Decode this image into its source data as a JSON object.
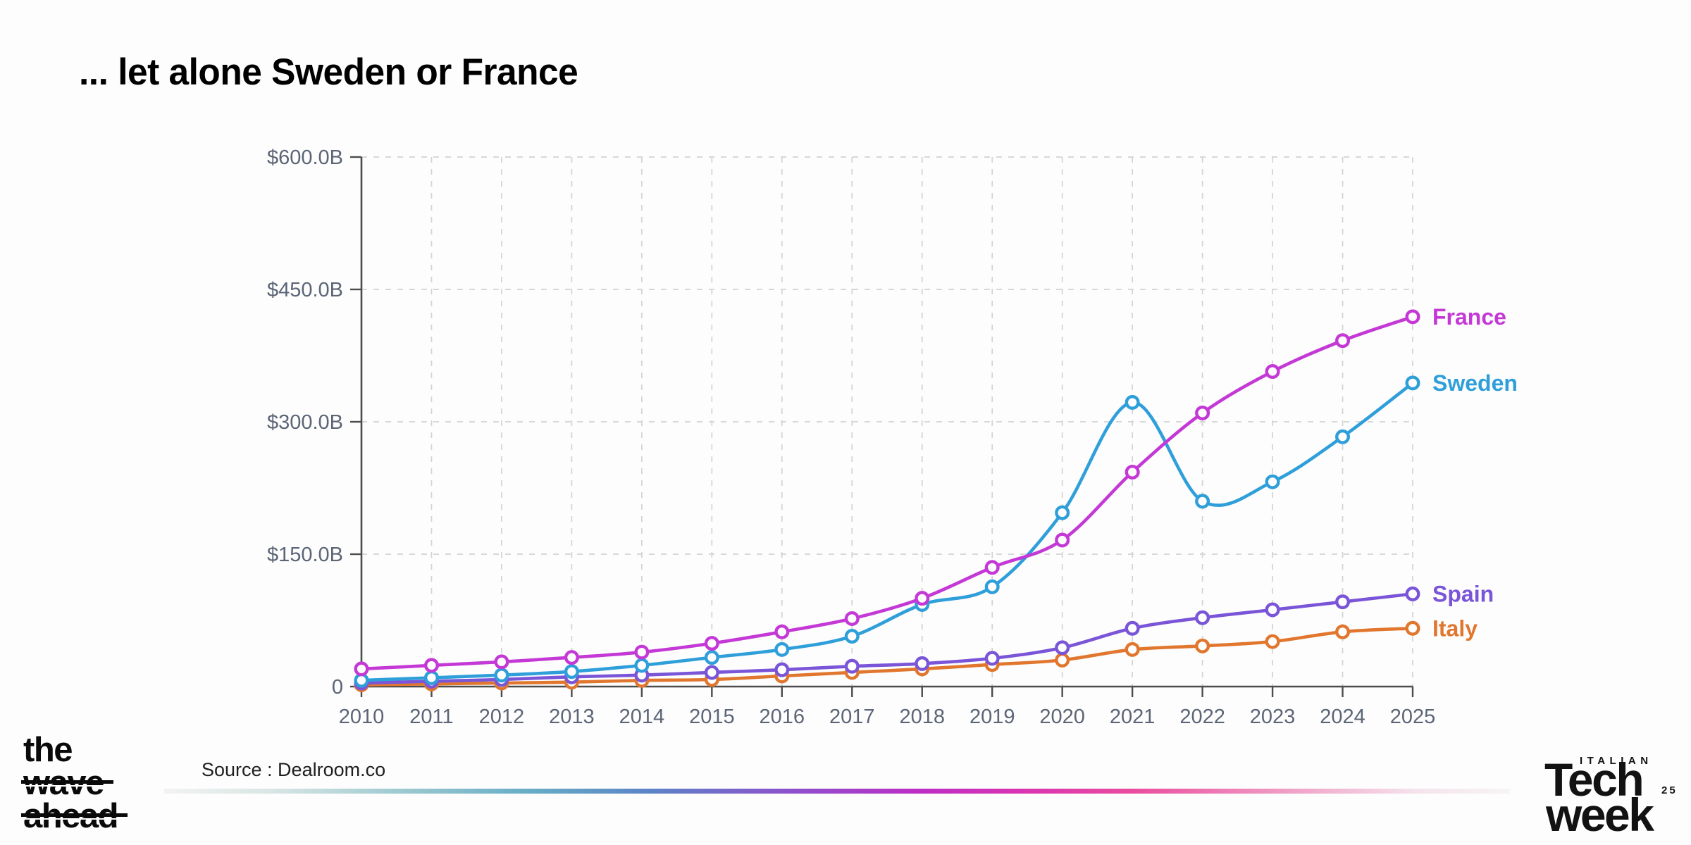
{
  "slide": {
    "title": "... let alone Sweden or France",
    "source": "Source : Dealroom.co"
  },
  "footer": {
    "left_logo": {
      "line1": "the",
      "line2": "wave",
      "line3": "ahead"
    },
    "right_logo": {
      "top": "ITALIAN",
      "line1": "Tech",
      "line2": "week",
      "year": "25"
    }
  },
  "chart_data": {
    "type": "line",
    "title": "... let alone Sweden or France",
    "xlabel": "",
    "ylabel": "",
    "ylim": [
      0,
      600
    ],
    "grid": "dashed",
    "legend_position": "right-of-line-end",
    "x": [
      2010,
      2011,
      2012,
      2013,
      2014,
      2015,
      2016,
      2017,
      2018,
      2019,
      2020,
      2021,
      2022,
      2023,
      2024,
      2025
    ],
    "y_ticks": [
      {
        "value": 0,
        "label": "0"
      },
      {
        "value": 150,
        "label": "$150.0B"
      },
      {
        "value": 300,
        "label": "$300.0B"
      },
      {
        "value": 450,
        "label": "$450.0B"
      },
      {
        "value": 600,
        "label": "$600.0B"
      }
    ],
    "series": [
      {
        "name": "Italy",
        "color": "#e1772e",
        "values": [
          2,
          3,
          4,
          5,
          7,
          8,
          12,
          16,
          20,
          25,
          30,
          42,
          46,
          51,
          62,
          66
        ]
      },
      {
        "name": "Spain",
        "color": "#7a55d8",
        "values": [
          4,
          6,
          8,
          11,
          13,
          16,
          19,
          23,
          26,
          32,
          44,
          66,
          78,
          87,
          96,
          105
        ]
      },
      {
        "name": "Sweden",
        "color": "#2f9fda",
        "values": [
          7,
          10,
          13,
          17,
          24,
          33,
          42,
          57,
          93,
          113,
          197,
          322,
          210,
          232,
          283,
          344
        ]
      },
      {
        "name": "France",
        "color": "#c438d6",
        "values": [
          20,
          24,
          28,
          33,
          39,
          49,
          62,
          77,
          100,
          135,
          166,
          243,
          310,
          357,
          392,
          419
        ]
      }
    ],
    "style_colors": {
      "axis": "#4c4c4c",
      "grid": "#d3d3d3",
      "tick_text": "#5b6576"
    }
  }
}
